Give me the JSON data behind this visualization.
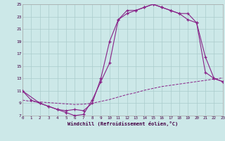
{
  "xlabel": "Windchill (Refroidissement éolien,°C)",
  "bg_color": "#cce8e8",
  "grid_color": "#aacccc",
  "line_color": "#882288",
  "xlim": [
    0,
    23
  ],
  "ylim": [
    7,
    25
  ],
  "yticks": [
    7,
    9,
    11,
    13,
    15,
    17,
    19,
    21,
    23,
    25
  ],
  "xticks": [
    0,
    1,
    2,
    3,
    4,
    5,
    6,
    7,
    8,
    9,
    10,
    11,
    12,
    13,
    14,
    15,
    16,
    17,
    18,
    19,
    20,
    21,
    22,
    23
  ],
  "line1_x": [
    0,
    1,
    2,
    3,
    4,
    5,
    6,
    7,
    8,
    9,
    10,
    11,
    12,
    13,
    14,
    15,
    16,
    17,
    18,
    19,
    20,
    21,
    22,
    23
  ],
  "line1_y": [
    11.0,
    9.5,
    9.0,
    8.5,
    8.0,
    7.5,
    7.0,
    7.2,
    9.5,
    12.5,
    15.5,
    22.5,
    24.0,
    24.0,
    24.5,
    25.0,
    24.5,
    24.0,
    23.5,
    23.5,
    22.0,
    16.5,
    13.0,
    12.5
  ],
  "line2_x": [
    0,
    2,
    3,
    4,
    5,
    6,
    7,
    8,
    9,
    10,
    11,
    12,
    13,
    14,
    15,
    16,
    17,
    18,
    19,
    20,
    21,
    22,
    23
  ],
  "line2_y": [
    11.0,
    9.0,
    8.5,
    8.0,
    7.8,
    8.0,
    7.8,
    9.0,
    13.0,
    19.0,
    22.5,
    23.5,
    24.0,
    24.5,
    25.0,
    24.5,
    24.0,
    23.5,
    22.5,
    22.0,
    14.0,
    13.0,
    12.5
  ],
  "line3_x": [
    0,
    1,
    2,
    3,
    4,
    5,
    6,
    7,
    8,
    9,
    10,
    11,
    12,
    13,
    14,
    15,
    16,
    17,
    18,
    19,
    20,
    21,
    22,
    23
  ],
  "line3_y": [
    9.5,
    9.3,
    9.2,
    9.1,
    9.0,
    8.9,
    8.8,
    8.85,
    9.0,
    9.3,
    9.6,
    10.0,
    10.4,
    10.7,
    11.1,
    11.4,
    11.7,
    11.9,
    12.1,
    12.3,
    12.5,
    12.7,
    12.9,
    13.1
  ]
}
